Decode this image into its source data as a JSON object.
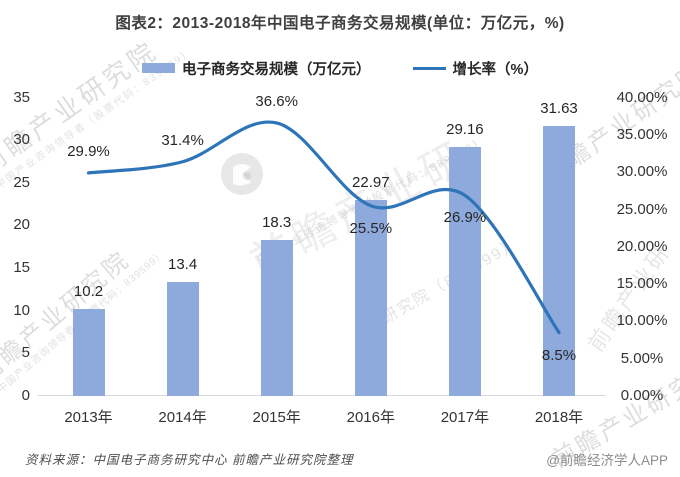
{
  "title": "图表2：2013-2018年中国电子商务交易规模(单位：万亿元，%)",
  "legend": [
    {
      "label": "电子商务交易规模（万亿元）",
      "type": "bar",
      "color": "#8EA9DB"
    },
    {
      "label": "增长率（%）",
      "type": "line",
      "color": "#2E74B8"
    }
  ],
  "chart_data": {
    "type": "bar+line",
    "title": "图表2：2013-2018年中国电子商务交易规模(单位：万亿元，%)",
    "categories": [
      "2013年",
      "2014年",
      "2015年",
      "2016年",
      "2017年",
      "2018年"
    ],
    "series": [
      {
        "name": "电子商务交易规模（万亿元）",
        "type": "bar",
        "axis": "left",
        "color": "#8EA9DB",
        "values": [
          10.2,
          13.4,
          18.3,
          22.97,
          29.16,
          31.63
        ],
        "labels": [
          "10.2",
          "13.4",
          "18.3",
          "22.97",
          "29.16",
          "31.63"
        ]
      },
      {
        "name": "增长率（%）",
        "type": "line",
        "axis": "right",
        "color": "#2E74B8",
        "values": [
          29.9,
          31.4,
          36.6,
          25.5,
          26.9,
          8.5
        ],
        "labels": [
          "29.9%",
          "31.4%",
          "36.6%",
          "25.5%",
          "26.9%",
          "8.5%"
        ],
        "label_positions": [
          "above",
          "above",
          "above",
          "below",
          "below",
          "below"
        ],
        "smooth": true
      }
    ],
    "left_axis": {
      "min": 0,
      "max": 35,
      "step": 5,
      "ticks": [
        "0",
        "5",
        "10",
        "15",
        "20",
        "25",
        "30",
        "35"
      ]
    },
    "right_axis": {
      "min": 0,
      "max": 40,
      "step": 5,
      "ticks": [
        "0.00%",
        "5.00%",
        "10.00%",
        "15.00%",
        "20.00%",
        "25.00%",
        "30.00%",
        "35.00%",
        "40.00%"
      ]
    },
    "grid": false,
    "legend_position": "top"
  },
  "watermarks": {
    "brand": "前瞻产业研究院",
    "brand_short": "前瞻产业研",
    "tagline": "中国产业咨询领导者（股票代码：839599）",
    "fragment": "研究院（839599）",
    "logo_icon": "qianzhan-logo-icon"
  },
  "footer": {
    "source": "资料来源：中国电子商务研究中心 前瞻产业研究院整理",
    "credit": "@前瞻经济学人APP"
  }
}
